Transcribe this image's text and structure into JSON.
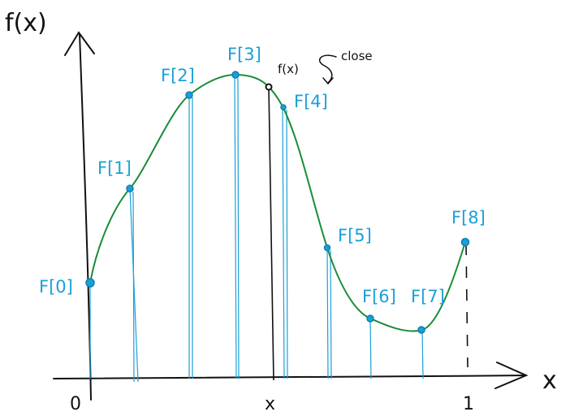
{
  "axes": {
    "y_label": "f(x)",
    "x_label": "x",
    "origin_label": "0",
    "end_label": "1",
    "x_marker_label": "x"
  },
  "points": [
    {
      "label": "F[0]"
    },
    {
      "label": "F[1]"
    },
    {
      "label": "F[2]"
    },
    {
      "label": "F[3]"
    },
    {
      "label": "F[4]"
    },
    {
      "label": "F[5]"
    },
    {
      "label": "F[6]"
    },
    {
      "label": "F[7]"
    },
    {
      "label": "F[8]"
    }
  ],
  "annotation": {
    "eval_label": "f(x)",
    "note": "close"
  },
  "colors": {
    "curve": "#1a8c3a",
    "samples": "#1aa0d8",
    "axes": "#111111"
  }
}
